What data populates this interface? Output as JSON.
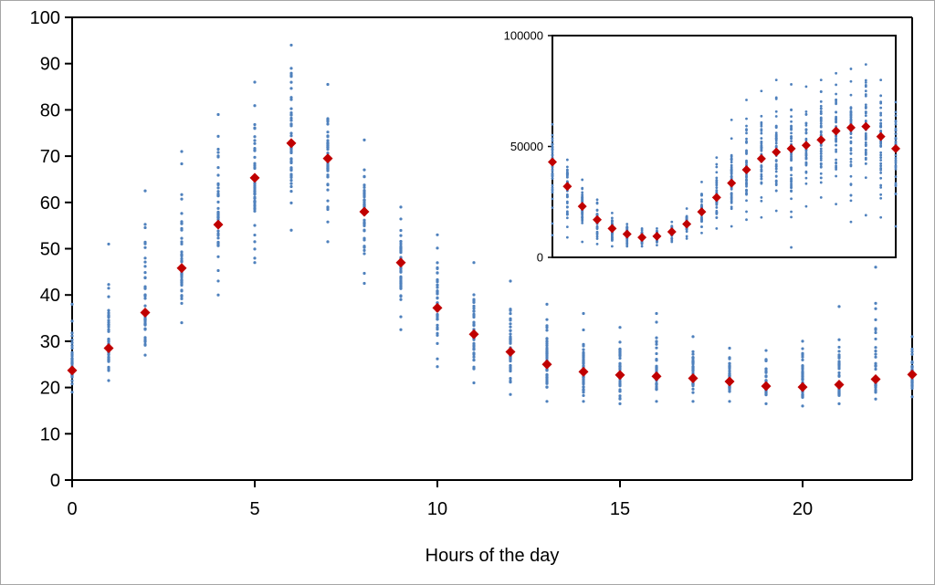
{
  "chart_data": [
    {
      "type": "scatter",
      "xlabel": "Hours of the day",
      "ylabel": "",
      "xlim": [
        0,
        23
      ],
      "ylim": [
        0,
        100
      ],
      "xticks": [
        0,
        5,
        10,
        15,
        20
      ],
      "yticks": [
        0,
        10,
        20,
        30,
        40,
        50,
        60,
        70,
        80,
        90,
        100
      ],
      "grid": false,
      "hours": [
        0,
        1,
        2,
        3,
        4,
        5,
        6,
        7,
        8,
        9,
        10,
        11,
        12,
        13,
        14,
        15,
        16,
        17,
        18,
        19,
        20,
        21,
        22,
        23
      ],
      "series": [
        {
          "role": "observations",
          "color": "#4f81bd",
          "min": [
            19,
            21.5,
            27,
            34,
            40,
            47,
            54,
            51.5,
            42.5,
            32.5,
            24.5,
            21,
            18.5,
            17,
            17,
            16.5,
            17,
            17,
            17,
            16.5,
            16,
            16.5,
            17.5,
            18
          ],
          "max": [
            38,
            51,
            62.5,
            71,
            79,
            86,
            94,
            85.5,
            73.5,
            59,
            53,
            47,
            43,
            38,
            36,
            33,
            36,
            31,
            28.5,
            28,
            30,
            37.5,
            46,
            31
          ]
        },
        {
          "role": "mean",
          "color": "#c00000",
          "values": [
            23.7,
            28.5,
            36.2,
            45.8,
            55.2,
            65.3,
            72.8,
            69.5,
            58,
            47,
            37.2,
            31.5,
            27.7,
            25,
            23.4,
            22.7,
            22.4,
            22,
            21.3,
            20.3,
            20.1,
            20.6,
            21.8,
            22.8
          ]
        }
      ]
    },
    {
      "type": "scatter",
      "position": "inset top-right",
      "ylim": [
        0,
        100000
      ],
      "yticks": [
        0,
        50000,
        100000
      ],
      "ytick_labels": [
        "0",
        "50000",
        "100000"
      ],
      "grid": false,
      "hours": [
        0,
        1,
        2,
        3,
        4,
        5,
        6,
        7,
        8,
        9,
        10,
        11,
        12,
        13,
        14,
        15,
        16,
        17,
        18,
        19,
        20,
        21,
        22,
        23
      ],
      "series": [
        {
          "role": "observations",
          "color": "#4f81bd",
          "min": [
            10000,
            9000,
            7000,
            6000,
            5000,
            5000,
            5000,
            5500,
            7000,
            8500,
            11000,
            13000,
            14000,
            17000,
            18000,
            21000,
            4500,
            23000,
            27000,
            24000,
            16000,
            19000,
            18000,
            14000
          ],
          "max": [
            60000,
            44000,
            35000,
            26000,
            20000,
            15000,
            13000,
            13000,
            16000,
            22000,
            34000,
            45000,
            62000,
            71000,
            75000,
            80000,
            78000,
            77000,
            80000,
            83000,
            85000,
            87000,
            80000,
            70000
          ]
        },
        {
          "role": "mean",
          "color": "#c00000",
          "values": [
            43000,
            32000,
            23000,
            17000,
            13000,
            10500,
            9000,
            9500,
            11500,
            15000,
            20500,
            27000,
            33500,
            39500,
            44500,
            47500,
            49000,
            50500,
            53000,
            57000,
            58500,
            59000,
            54500,
            49000
          ]
        }
      ]
    }
  ]
}
